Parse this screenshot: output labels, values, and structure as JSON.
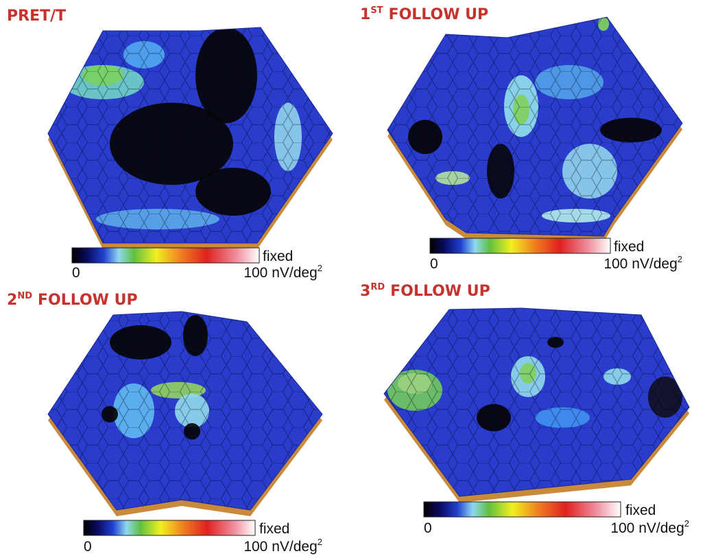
{
  "panels": [
    {
      "title": {
        "text": "PRET/T"
      },
      "colorbar": {
        "label": "fixed",
        "min": "0",
        "max": "100 nV/deg",
        "max_sup": "2"
      }
    },
    {
      "title": {
        "number": "1",
        "sup": "ST",
        "text": "FOLLOW UP"
      },
      "colorbar": {
        "label": "fixed",
        "min": "0",
        "max": "100 nV/deg",
        "max_sup": "2"
      }
    },
    {
      "title": {
        "number": "2",
        "sup": "ND",
        "text": "FOLLOW UP"
      },
      "colorbar": {
        "label": "fixed",
        "min": "0",
        "max": "100 nV/deg",
        "max_sup": "2"
      }
    },
    {
      "title": {
        "number": "3",
        "sup": "RD",
        "text": "FOLLOW UP"
      },
      "colorbar": {
        "label": "fixed",
        "min": "0",
        "max": "100 nV/deg",
        "max_sup": "2"
      }
    }
  ]
}
